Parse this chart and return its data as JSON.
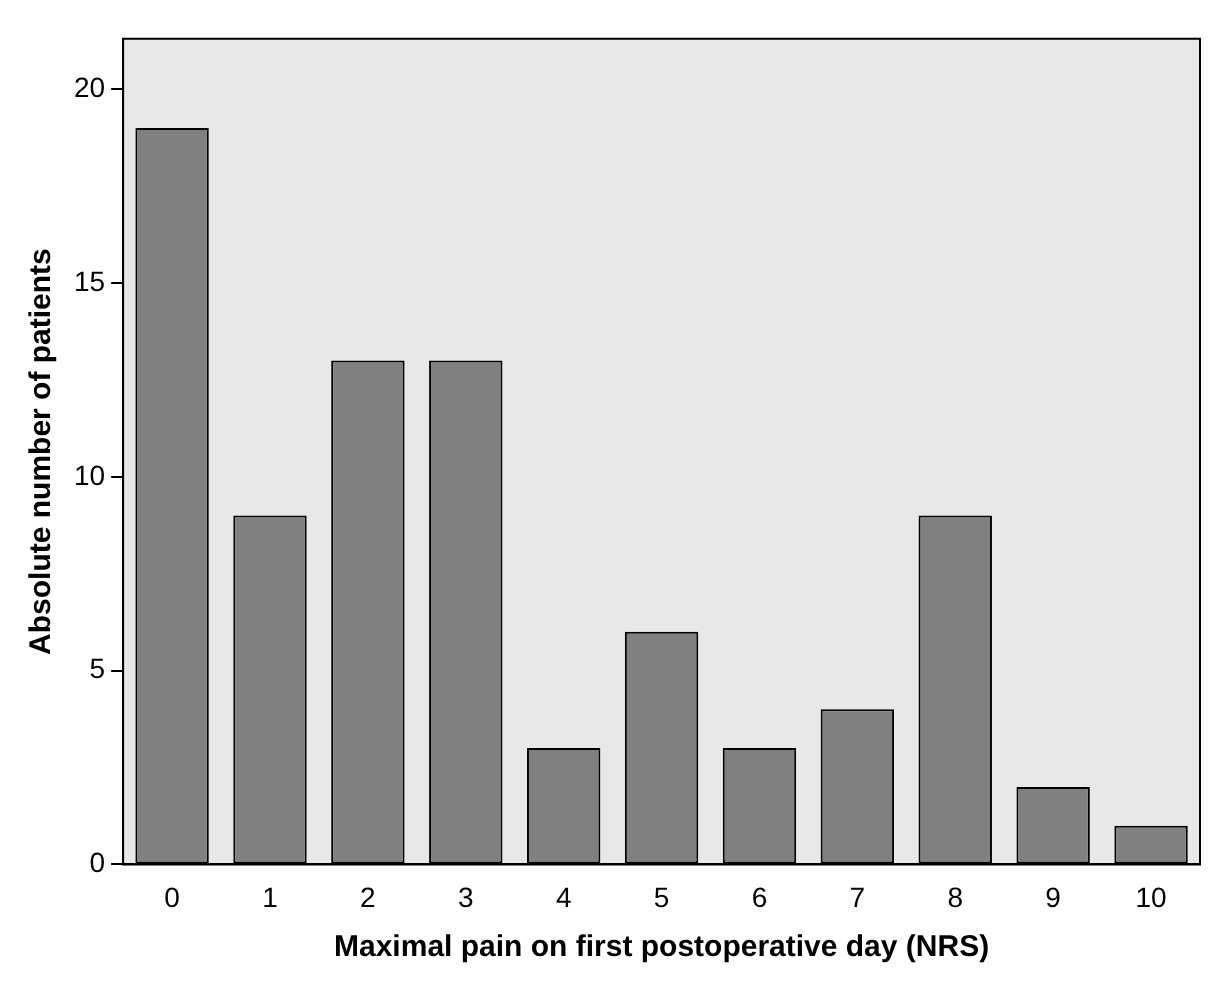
{
  "chart_data": {
    "type": "bar",
    "xlabel": "Maximal pain on first postoperative day (NRS)",
    "ylabel": "Absolute number of patients",
    "categories": [
      "0",
      "1",
      "2",
      "3",
      "4",
      "5",
      "6",
      "7",
      "8",
      "9",
      "10"
    ],
    "values": [
      19,
      9,
      13,
      13,
      3,
      6,
      3,
      4,
      9,
      2,
      1
    ],
    "color": "#808080",
    "ylim": [
      0,
      21.3
    ],
    "yticks": [
      0,
      5,
      10,
      15,
      20
    ],
    "grid": false,
    "legend": false
  }
}
